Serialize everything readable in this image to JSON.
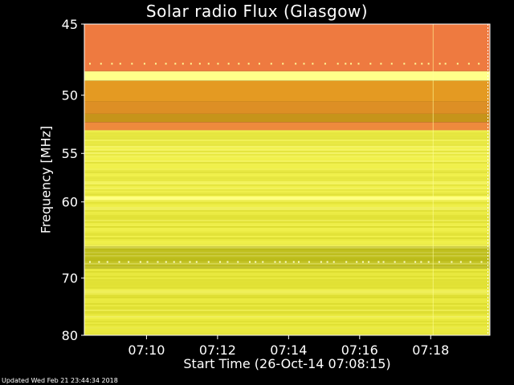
{
  "chart_data": {
    "type": "heatmap",
    "title": "Solar radio Flux (Glasgow)",
    "xlabel": "Start Time (26-Oct-14 07:08:15)",
    "ylabel": "Frequency [MHz]",
    "x_start": "07:08:15",
    "x_end": "07:19:40",
    "x_ticks": [
      "07:10",
      "07:12",
      "07:14",
      "07:16",
      "07:18"
    ],
    "y_range": [
      45,
      80
    ],
    "y_ticks": [
      45,
      50,
      55,
      60,
      70,
      80
    ],
    "bands": [
      {
        "from": 45,
        "to": 48.2,
        "color": "#ee7a40"
      },
      {
        "from": 48.2,
        "to": 48.9,
        "color": "#ffff8a"
      },
      {
        "from": 48.9,
        "to": 50.5,
        "color": "#e49a22"
      },
      {
        "from": 50.5,
        "to": 51.5,
        "color": "#dd8f25"
      },
      {
        "from": 51.5,
        "to": 52.2,
        "color": "#c6941a"
      },
      {
        "from": 52.2,
        "to": 52.9,
        "color": "#ee8a3d"
      },
      {
        "from": 52.9,
        "to": 59.4,
        "color": "#eeee4a"
      },
      {
        "from": 59.4,
        "to": 59.8,
        "color": "#ffff8a"
      },
      {
        "from": 59.8,
        "to": 65.5,
        "color": "#e8e83e"
      },
      {
        "from": 65.5,
        "to": 68.5,
        "color": "#b8b81a"
      },
      {
        "from": 68.5,
        "to": 80,
        "color": "#e6e63a"
      }
    ],
    "colors": {
      "background": "#000000",
      "text": "#ffffff",
      "highlight": "#ffffff"
    }
  },
  "footer": "Updated Wed Feb 21 23:44:34 2018"
}
